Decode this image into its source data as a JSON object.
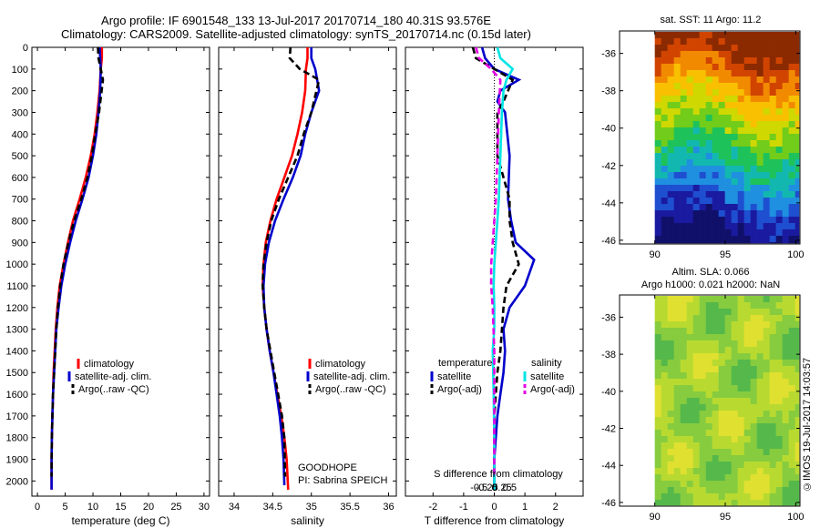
{
  "title_line1": "Argo profile: IF 6901548_133 13-Jul-2017 20170714_180 40.31S 93.576E",
  "title_line2": "Climatology: CARS2009. Satellite-adjusted climatology: synTS_20170714.nc (0.15d later)",
  "side_text": "©IMOS 19-Jul-2017 14:03:57",
  "colors": {
    "climatology": "#ff0000",
    "satellite": "#0000cc",
    "argo": "#000000",
    "sat_salinity": "#00e5e5",
    "argo_salinity": "#e600e6"
  },
  "chart_data": [
    {
      "type": "line",
      "name": "temperature",
      "xlabel": "temperature (deg C)",
      "xlim": [
        -1,
        31
      ],
      "xticks": [
        0,
        5,
        10,
        15,
        20,
        25,
        30
      ],
      "ylim": [
        0,
        2070
      ],
      "yticks": [
        0,
        100,
        200,
        300,
        400,
        500,
        600,
        700,
        800,
        900,
        1000,
        1100,
        1200,
        1300,
        1400,
        1500,
        1600,
        1700,
        1800,
        1900,
        2000
      ],
      "y_reversed": true,
      "legend": [
        "climatology",
        "satellite-adj. clim.",
        "Argo(..raw -QC)"
      ],
      "series": [
        {
          "name": "climatology",
          "x": [
            11.6,
            11.6,
            11.4,
            11.2,
            10.8,
            10.3,
            9.6,
            8.7,
            7.6,
            6.4,
            5.5,
            4.7,
            4.0,
            3.6,
            3.3,
            3.1,
            2.9,
            2.8,
            2.7,
            2.6,
            2.55,
            2.55
          ],
          "y": [
            0,
            50,
            100,
            200,
            300,
            400,
            500,
            600,
            700,
            800,
            900,
            1000,
            1100,
            1200,
            1300,
            1400,
            1500,
            1600,
            1700,
            1800,
            1900,
            2040
          ]
        },
        {
          "name": "satellite-adj. clim.",
          "x": [
            11.2,
            11.3,
            11.4,
            11.3,
            11.0,
            10.6,
            10.0,
            9.2,
            8.1,
            6.9,
            5.9,
            5.0,
            4.3,
            3.8,
            3.4,
            3.2,
            3.0,
            2.8,
            2.7,
            2.6,
            2.55,
            2.55
          ],
          "y": [
            0,
            50,
            100,
            200,
            300,
            400,
            500,
            600,
            700,
            800,
            900,
            1000,
            1100,
            1200,
            1300,
            1400,
            1500,
            1600,
            1700,
            1800,
            1900,
            2040
          ]
        },
        {
          "name": "Argo(..raw -QC)",
          "x": [
            10.9,
            11.0,
            11.4,
            11.8,
            11.1,
            10.4,
            9.8,
            9.0,
            7.9,
            6.6,
            5.6,
            4.7,
            4.1,
            3.7,
            3.4,
            3.2,
            3.0,
            2.8,
            2.7,
            2.6,
            2.55
          ],
          "y": [
            0,
            50,
            100,
            150,
            300,
            400,
            500,
            600,
            700,
            800,
            900,
            1000,
            1100,
            1200,
            1300,
            1400,
            1500,
            1600,
            1700,
            1800,
            1980
          ]
        }
      ]
    },
    {
      "type": "line",
      "name": "salinity",
      "xlabel": "salinity",
      "xlim": [
        33.8,
        36.1
      ],
      "xticks": [
        34,
        34.5,
        35,
        35.5,
        36
      ],
      "ylim": [
        0,
        2070
      ],
      "y_reversed": true,
      "legend": [
        "climatology",
        "satellite-adj. clim.",
        "Argo(..raw -QC)"
      ],
      "annotations": [
        "GOODHOPE",
        "PI: Sabrina SPEICH"
      ],
      "series": [
        {
          "name": "climatology",
          "x": [
            34.95,
            34.95,
            34.93,
            34.92,
            34.88,
            34.82,
            34.75,
            34.65,
            34.55,
            34.47,
            34.41,
            34.38,
            34.37,
            34.39,
            34.42,
            34.46,
            34.51,
            34.56,
            34.61,
            34.65,
            34.68,
            34.7
          ],
          "y": [
            0,
            50,
            100,
            200,
            300,
            400,
            500,
            600,
            700,
            800,
            900,
            1000,
            1100,
            1200,
            1300,
            1400,
            1500,
            1600,
            1700,
            1800,
            1900,
            2040
          ]
        },
        {
          "name": "satellite-adj. clim.",
          "x": [
            35.0,
            35.0,
            35.05,
            35.1,
            35.0,
            34.92,
            34.86,
            34.76,
            34.64,
            34.53,
            34.45,
            34.4,
            34.38,
            34.39,
            34.42,
            34.46,
            34.51,
            34.55,
            34.59,
            34.62,
            34.64,
            34.65
          ],
          "y": [
            0,
            50,
            100,
            200,
            300,
            400,
            500,
            600,
            700,
            800,
            900,
            1000,
            1100,
            1200,
            1300,
            1400,
            1500,
            1600,
            1700,
            1800,
            1900,
            2020
          ]
        },
        {
          "name": "Argo(..raw -QC)",
          "x": [
            34.73,
            34.72,
            34.85,
            35.1,
            35.0,
            34.9,
            34.82,
            34.7,
            34.58,
            34.48,
            34.42,
            34.38,
            34.37,
            34.39,
            34.42,
            34.47,
            34.52,
            34.57,
            34.62,
            34.65,
            34.66
          ],
          "y": [
            0,
            50,
            100,
            150,
            300,
            400,
            500,
            600,
            700,
            800,
            900,
            1000,
            1100,
            1200,
            1300,
            1400,
            1500,
            1600,
            1700,
            1800,
            1980
          ]
        }
      ]
    },
    {
      "type": "line",
      "name": "differences",
      "xlabel": "T difference from climatology",
      "xlabel_top": "S difference from climatology",
      "xlim": [
        -2.9,
        2.9
      ],
      "xticks": [
        -2,
        -1,
        0,
        1,
        2
      ],
      "sticks": [
        -0.5,
        -0.25,
        0,
        0.25,
        0.5
      ],
      "sticks_labels": [
        "-0.5",
        "-0.25",
        "0",
        "0.25",
        "0.5"
      ],
      "ylim": [
        0,
        2070
      ],
      "y_reversed": true,
      "legend": [
        {
          "header": "temperature",
          "items": [
            "satellite",
            "Argo(-adj)"
          ]
        },
        {
          "header": "salinity",
          "items": [
            "satellite",
            "Argo(-adj)"
          ]
        }
      ],
      "series": [
        {
          "name": "temperature satellite",
          "x": [
            -0.4,
            -0.3,
            0.0,
            0.8,
            0.2,
            0.1,
            0.35,
            0.5,
            0.45,
            0.55,
            0.7,
            1.3,
            1.0,
            0.5,
            0.3,
            0.35,
            0.3,
            0.2,
            0.1,
            0.05,
            0.0,
            0.0
          ],
          "y": [
            0,
            50,
            100,
            150,
            200,
            250,
            300,
            500,
            700,
            800,
            900,
            980,
            1100,
            1200,
            1300,
            1400,
            1500,
            1600,
            1700,
            1800,
            1900,
            2040
          ]
        },
        {
          "name": "temperature Argo(-adj)",
          "x": [
            -0.7,
            -0.6,
            0.0,
            0.6,
            0.3,
            0.1,
            0.1,
            0.3,
            0.5,
            0.5,
            0.6,
            0.8,
            0.4,
            0.3,
            0.25,
            0.2,
            0.1,
            0.05,
            0.0,
            0.0
          ],
          "y": [
            0,
            50,
            100,
            150,
            250,
            300,
            500,
            600,
            700,
            800,
            900,
            1000,
            1100,
            1200,
            1300,
            1400,
            1500,
            1600,
            1700,
            1980
          ]
        },
        {
          "name": "salinity satellite",
          "x": [
            0.1,
            0.2,
            0.6,
            0.4,
            0.3,
            0.25,
            0.2,
            0.15,
            0.1,
            0.05,
            0.0,
            -0.02,
            0.0,
            0.0,
            -0.05,
            -0.02,
            0.0,
            0.0,
            0.0
          ],
          "y": [
            0,
            50,
            100,
            150,
            200,
            300,
            500,
            700,
            800,
            900,
            1000,
            1100,
            1200,
            1300,
            1400,
            1600,
            1800,
            1900,
            2040
          ]
        },
        {
          "name": "salinity Argo(-adj)",
          "x": [
            -0.6,
            -0.5,
            -0.1,
            0.2,
            0.15,
            0.1,
            0.05,
            0.0,
            -0.05,
            -0.1,
            -0.1,
            -0.05,
            0.0,
            0.0,
            0.0
          ],
          "y": [
            0,
            50,
            100,
            150,
            300,
            500,
            700,
            800,
            900,
            1000,
            1100,
            1200,
            1400,
            1700,
            1980
          ]
        }
      ]
    },
    {
      "type": "heatmap",
      "name": "sst_map",
      "title": "sat. SST: 11 Argo: 11.2",
      "xlim": [
        87.5,
        100.3
      ],
      "ylim": [
        -46.2,
        -34.8
      ],
      "xticks": [
        90,
        95,
        100
      ],
      "yticks": [
        -36,
        -38,
        -40,
        -42,
        -44,
        -46
      ]
    },
    {
      "type": "heatmap",
      "name": "sla_map",
      "title_line1": "Altim. SLA: 0.066",
      "title_line2": "Argo h1000: 0.021 h2000: NaN",
      "xlim": [
        87.5,
        100.3
      ],
      "ylim": [
        -46.2,
        -34.8
      ],
      "xticks": [
        90,
        95,
        100
      ],
      "yticks": [
        -36,
        -38,
        -40,
        -42,
        -44,
        -46
      ]
    }
  ]
}
